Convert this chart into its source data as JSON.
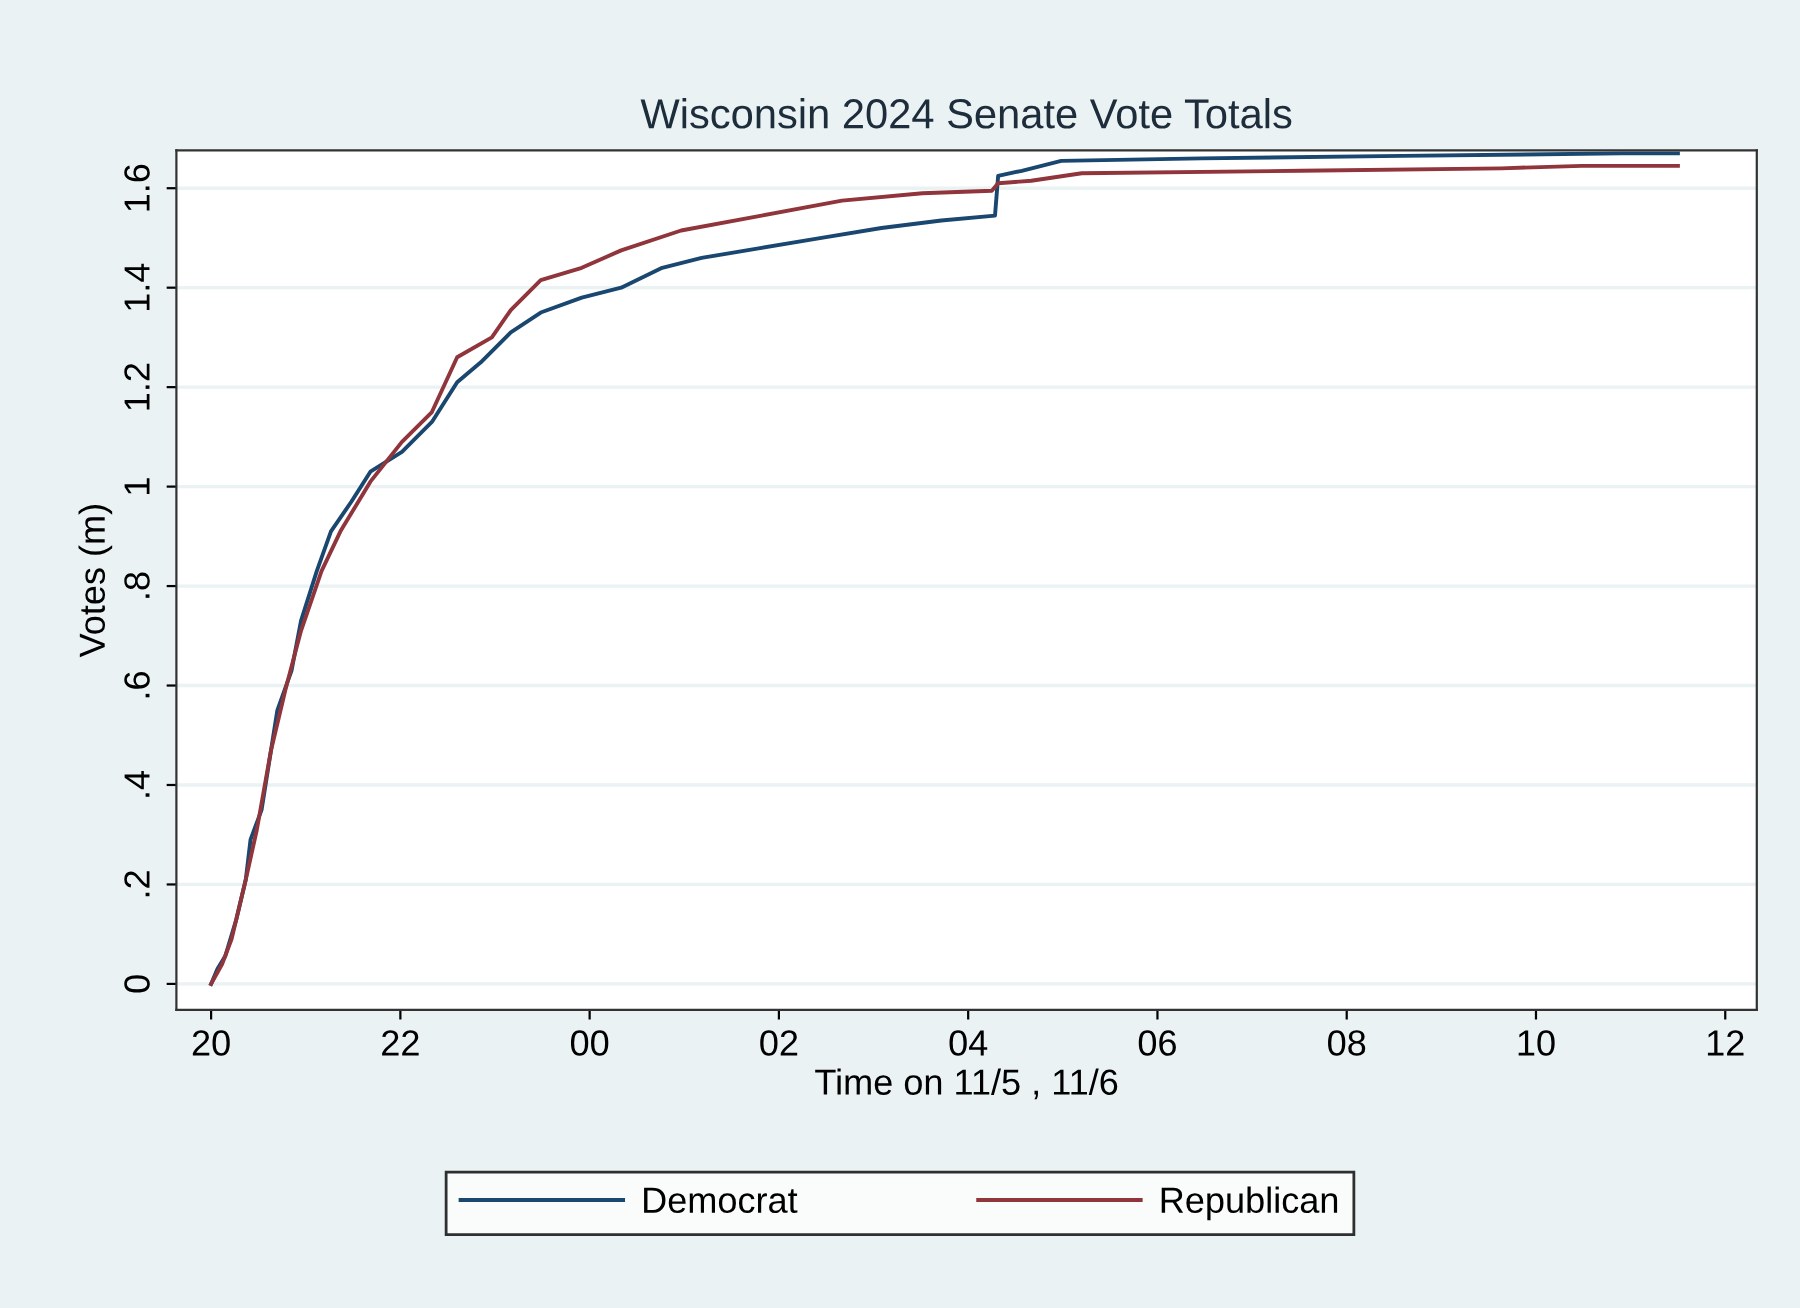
{
  "chart_data": {
    "type": "line",
    "title": "Wisconsin 2024 Senate Vote Totals",
    "xlabel": "Time on 11/5 , 11/6",
    "ylabel": "Votes (m)",
    "xlim": [
      "2024-11-05T19:38",
      "2024-11-06T12:20"
    ],
    "ylim": [
      -0.052,
      1.676
    ],
    "xticks": [
      {
        "value": "2024-11-05T20:00",
        "label": "20"
      },
      {
        "value": "2024-11-05T22:00",
        "label": "22"
      },
      {
        "value": "2024-11-06T00:00",
        "label": "00"
      },
      {
        "value": "2024-11-06T02:00",
        "label": "02"
      },
      {
        "value": "2024-11-06T04:00",
        "label": "04"
      },
      {
        "value": "2024-11-06T06:00",
        "label": "06"
      },
      {
        "value": "2024-11-06T08:00",
        "label": "08"
      },
      {
        "value": "2024-11-06T10:00",
        "label": "10"
      },
      {
        "value": "2024-11-06T12:00",
        "label": "12"
      }
    ],
    "yticks": [
      0,
      {
        "value": 0.2,
        "label": ".2"
      },
      {
        "value": 0.4,
        "label": ".4"
      },
      {
        "value": 0.6,
        "label": ".6"
      },
      {
        "value": 0.8,
        "label": ".8"
      },
      1,
      1.2,
      1.4,
      1.6
    ],
    "grid": "y",
    "legend": "bottom",
    "marker": "none",
    "line_style": "solid",
    "series": [
      {
        "name": "Democrat",
        "color": "#1a476f",
        "x": [
          "2024-11-05T20:00",
          "2024-11-05T20:04",
          "2024-11-05T20:09",
          "2024-11-05T20:16",
          "2024-11-05T20:22",
          "2024-11-05T20:25",
          "2024-11-05T20:32",
          "2024-11-05T20:37",
          "2024-11-05T20:42",
          "2024-11-05T20:51",
          "2024-11-05T20:57",
          "2024-11-05T21:07",
          "2024-11-05T21:16",
          "2024-11-05T21:29",
          "2024-11-05T21:41",
          "2024-11-05T22:01",
          "2024-11-05T22:20",
          "2024-11-05T22:36",
          "2024-11-05T22:51",
          "2024-11-05T23:10",
          "2024-11-05T23:29",
          "2024-11-05T23:55",
          "2024-11-06T00:20",
          "2024-11-06T00:46",
          "2024-11-06T01:11",
          "2024-11-06T01:49",
          "2024-11-06T02:27",
          "2024-11-06T03:05",
          "2024-11-06T03:43",
          "2024-11-06T04:17",
          "2024-11-06T04:19",
          "2024-11-06T04:34",
          "2024-11-06T04:59",
          "2024-11-06T06:28",
          "2024-11-06T08:35",
          "2024-11-06T10:54",
          "2024-11-06T11:30"
        ],
        "values": [
          0,
          0.03,
          0.056,
          0.13,
          0.21,
          0.29,
          0.35,
          0.45,
          0.55,
          0.63,
          0.73,
          0.83,
          0.91,
          0.97,
          1.03,
          1.07,
          1.13,
          1.21,
          1.25,
          1.31,
          1.35,
          1.38,
          1.4,
          1.44,
          1.46,
          1.48,
          1.5,
          1.52,
          1.535,
          1.545,
          1.625,
          1.635,
          1.655,
          1.66,
          1.665,
          1.67,
          1.67
        ]
      },
      {
        "name": "Republican",
        "color": "#90353b",
        "x": [
          "2024-11-05T20:00",
          "2024-11-05T20:07",
          "2024-11-05T20:13",
          "2024-11-05T20:22",
          "2024-11-05T20:29",
          "2024-11-05T20:38",
          "2024-11-05T20:47",
          "2024-11-05T20:57",
          "2024-11-05T21:10",
          "2024-11-05T21:22",
          "2024-11-05T21:41",
          "2024-11-05T22:01",
          "2024-11-05T22:20",
          "2024-11-05T22:36",
          "2024-11-05T22:58",
          "2024-11-05T23:10",
          "2024-11-05T23:29",
          "2024-11-05T23:55",
          "2024-11-06T00:20",
          "2024-11-06T00:58",
          "2024-11-06T01:49",
          "2024-11-06T02:40",
          "2024-11-06T03:31",
          "2024-11-06T04:15",
          "2024-11-06T04:19",
          "2024-11-06T04:40",
          "2024-11-06T05:12",
          "2024-11-06T07:31",
          "2024-11-06T09:38",
          "2024-11-06T10:29",
          "2024-11-06T11:30"
        ],
        "values": [
          0,
          0.04,
          0.09,
          0.21,
          0.31,
          0.47,
          0.59,
          0.71,
          0.83,
          0.91,
          1.01,
          1.09,
          1.15,
          1.26,
          1.3,
          1.355,
          1.415,
          1.44,
          1.475,
          1.515,
          1.545,
          1.575,
          1.59,
          1.595,
          1.61,
          1.615,
          1.63,
          1.635,
          1.64,
          1.645,
          1.645
        ]
      }
    ]
  }
}
